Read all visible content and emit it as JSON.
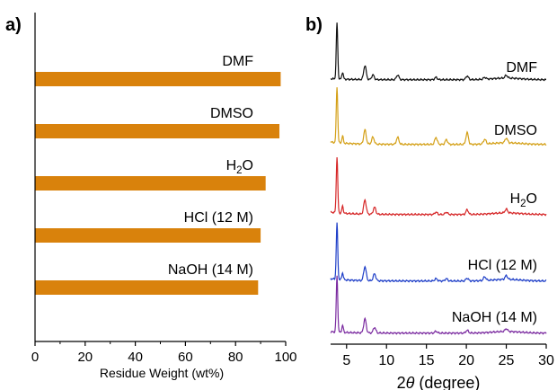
{
  "chart_data": [
    {
      "panel_label": "a)",
      "type": "bar",
      "orientation": "horizontal",
      "categories": [
        "DMF",
        "DMSO",
        "H2O",
        "HCl (12 M)",
        "NaOH (14 M)"
      ],
      "values": [
        98,
        97.5,
        92,
        90,
        89
      ],
      "xlabel": "Residue Weight (wt%)",
      "ylabel": "",
      "xlim": [
        0,
        100
      ],
      "xticks": [
        0,
        20,
        40,
        60,
        80,
        100
      ],
      "bar_color": "#d9820c",
      "grid": false
    },
    {
      "panel_label": "b)",
      "type": "line",
      "xlabel": "2θ (degree)",
      "xlabel_parts": {
        "italic": "θ",
        "prefix": "2",
        "suffix": " (degree)"
      },
      "xlim": [
        3,
        30
      ],
      "xticks": [
        5,
        10,
        15,
        20,
        25,
        30
      ],
      "y_axis_shown": false,
      "grid": false,
      "series": [
        {
          "name": "DMF",
          "color": "#111111",
          "baseline": 0.2,
          "peaks": [
            [
              3.8,
              12.0
            ],
            [
              4.5,
              1.5
            ],
            [
              7.3,
              3.0
            ],
            [
              8.3,
              1.0
            ],
            [
              11.4,
              1.0
            ],
            [
              16.2,
              0.5
            ],
            [
              20.1,
              0.8
            ],
            [
              22.3,
              0.4
            ],
            [
              25.0,
              0.6
            ]
          ]
        },
        {
          "name": "DMSO",
          "color": "#d4a017",
          "baseline": 0.5,
          "peaks": [
            [
              3.8,
              12.0
            ],
            [
              4.5,
              1.5
            ],
            [
              7.3,
              3.0
            ],
            [
              8.3,
              1.5
            ],
            [
              11.4,
              1.5
            ],
            [
              16.2,
              1.5
            ],
            [
              17.5,
              1.0
            ],
            [
              20.1,
              2.5
            ],
            [
              22.3,
              1.0
            ],
            [
              25.0,
              1.0
            ]
          ]
        },
        {
          "name": "H2O",
          "color": "#d62728",
          "baseline": 0.5,
          "peaks": [
            [
              3.8,
              12.0
            ],
            [
              4.5,
              1.5
            ],
            [
              7.3,
              3.0
            ],
            [
              8.5,
              1.5
            ],
            [
              16.2,
              0.5
            ],
            [
              17.5,
              0.5
            ],
            [
              20.1,
              1.0
            ],
            [
              25.0,
              0.8
            ]
          ]
        },
        {
          "name": "HCl (12 M)",
          "color": "#1f3fc8",
          "baseline": 0.5,
          "peaks": [
            [
              3.8,
              12.0
            ],
            [
              4.5,
              1.5
            ],
            [
              7.3,
              3.0
            ],
            [
              8.5,
              1.5
            ],
            [
              16.2,
              0.5
            ],
            [
              17.5,
              0.5
            ],
            [
              20.1,
              0.6
            ],
            [
              22.3,
              0.8
            ],
            [
              25.0,
              0.8
            ]
          ]
        },
        {
          "name": "NaOH (14 M)",
          "color": "#7b2ba0",
          "baseline": 0.3,
          "peaks": [
            [
              3.8,
              12.0
            ],
            [
              4.5,
              1.5
            ],
            [
              7.3,
              3.0
            ],
            [
              8.5,
              1.2
            ],
            [
              16.2,
              0.4
            ],
            [
              20.1,
              0.6
            ],
            [
              25.0,
              0.6
            ]
          ]
        }
      ]
    }
  ]
}
